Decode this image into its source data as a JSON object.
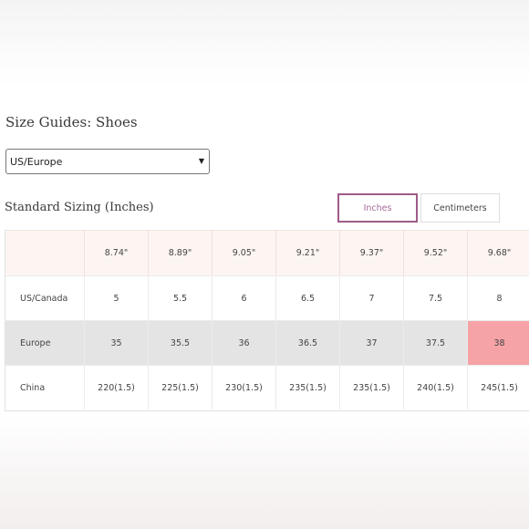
{
  "page_title": "Size Guides: Shoes",
  "region_select": {
    "value": "US/Europe"
  },
  "section_title": "Standard Sizing (Inches)",
  "units": {
    "inches": "Inches",
    "centimeters": "Centimeters"
  },
  "table": {
    "header": [
      "",
      "8.74\"",
      "8.89\"",
      "9.05\"",
      "9.21\"",
      "9.37\"",
      "9.52\"",
      "9.68\""
    ],
    "rows": [
      {
        "label": "US/Canada",
        "values": [
          "5",
          "5.5",
          "6",
          "6.5",
          "7",
          "7.5",
          "8"
        ]
      },
      {
        "label": "Europe",
        "values": [
          "35",
          "35.5",
          "36",
          "36.5",
          "37",
          "37.5",
          "38"
        ]
      },
      {
        "label": "China",
        "values": [
          "220(1.5)",
          "225(1.5)",
          "230(1.5)",
          "235(1.5)",
          "235(1.5)",
          "240(1.5)",
          "245(1.5)"
        ]
      }
    ]
  },
  "colors": {
    "active_border": "#9e5b87",
    "active_text": "#a4689a",
    "header_bg": "#fdf5f1",
    "europe_row_bg": "#e4e4e4",
    "highlight_bg": "#f5a3a6"
  }
}
